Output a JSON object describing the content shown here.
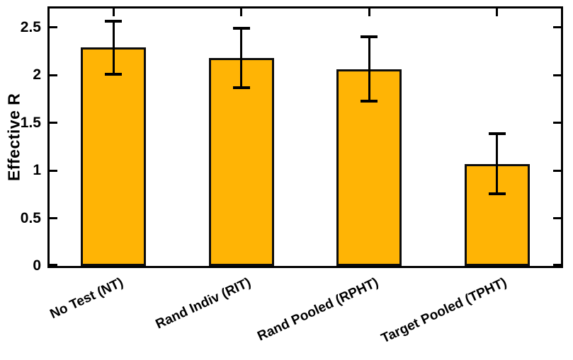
{
  "chart_data": {
    "type": "bar",
    "title": "",
    "xlabel": "",
    "ylabel": "Effective R",
    "categories": [
      "No Test (NT)",
      "Rand Indiv (RIT)",
      "Rand Pooled (RPHT)",
      "Target Pooled (TPHT)"
    ],
    "values": [
      2.29,
      2.18,
      2.06,
      1.07
    ],
    "error_low": [
      2.01,
      1.87,
      1.73,
      0.76
    ],
    "error_high": [
      2.57,
      2.49,
      2.4,
      1.39
    ],
    "yticks": [
      0,
      0.5,
      1,
      1.5,
      2,
      2.5
    ],
    "ytick_labels": [
      "0",
      "0.5",
      "1",
      "1.5",
      "2",
      "2.5"
    ],
    "ylim": [
      0,
      2.7
    ],
    "grid": false,
    "legend": null,
    "bar_color": "#FFB405",
    "bar_edge_color": "#0d0d0d",
    "error_color": "#000000",
    "axis_color": "#000000"
  }
}
